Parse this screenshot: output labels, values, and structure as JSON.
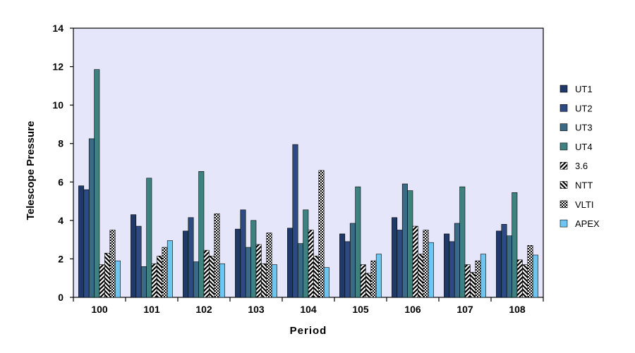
{
  "chart_data": {
    "type": "bar",
    "title": "",
    "xlabel": "Period",
    "ylabel": "Telescope Pressure",
    "ylim": [
      0,
      14
    ],
    "yticks": [
      0,
      2,
      4,
      6,
      8,
      10,
      12,
      14
    ],
    "categories": [
      "100",
      "101",
      "102",
      "103",
      "104",
      "105",
      "106",
      "107",
      "108"
    ],
    "legend_position": "right",
    "grid": false,
    "background": "#e6e6fa",
    "series": [
      {
        "name": "UT1",
        "color": "#1f3a68",
        "pattern": "solid",
        "values": [
          5.8,
          4.3,
          3.45,
          3.55,
          3.6,
          3.3,
          4.15,
          3.3,
          3.45
        ]
      },
      {
        "name": "UT2",
        "color": "#2e4a82",
        "pattern": "solid",
        "values": [
          5.6,
          3.7,
          4.15,
          4.55,
          7.95,
          2.9,
          3.5,
          2.9,
          3.8
        ]
      },
      {
        "name": "UT3",
        "color": "#3a6a86",
        "pattern": "solid",
        "values": [
          8.25,
          1.6,
          1.85,
          2.6,
          2.8,
          3.85,
          5.9,
          3.85,
          3.2
        ]
      },
      {
        "name": "UT4",
        "color": "#3f8080",
        "pattern": "solid",
        "values": [
          11.85,
          6.2,
          6.55,
          4.0,
          4.55,
          5.75,
          5.55,
          5.75,
          5.45
        ]
      },
      {
        "name": "3.6",
        "color": "#000000",
        "pattern": "diag-up",
        "values": [
          1.7,
          1.75,
          2.45,
          2.75,
          3.5,
          1.7,
          3.7,
          1.7,
          1.95
        ]
      },
      {
        "name": "NTT",
        "color": "#000000",
        "pattern": "diag-down",
        "values": [
          2.3,
          2.15,
          2.15,
          1.75,
          2.15,
          1.25,
          2.25,
          1.3,
          1.7
        ]
      },
      {
        "name": "VLTI",
        "color": "#000000",
        "pattern": "checker",
        "values": [
          3.5,
          2.6,
          4.35,
          3.35,
          6.6,
          1.9,
          3.5,
          1.9,
          2.7
        ]
      },
      {
        "name": "APEX",
        "color": "#6ec6f0",
        "pattern": "solid",
        "values": [
          1.9,
          2.95,
          1.75,
          1.7,
          1.55,
          2.25,
          2.85,
          2.25,
          2.2
        ]
      }
    ]
  }
}
